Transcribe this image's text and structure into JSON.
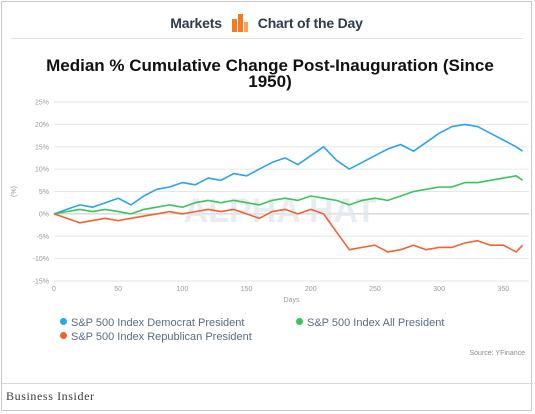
{
  "header": {
    "left_label": "Markets",
    "right_label": "Chart of the Day",
    "icon_name": "bar-chart-icon"
  },
  "watermark": "ALPHA HAT",
  "footer": {
    "source": "Source: YFinance",
    "brand": "Business Insider"
  },
  "colors": {
    "democrat": "#2aa4ea",
    "all": "#3cc45a",
    "republican": "#f2622d",
    "icon_orange": "#f47b20"
  },
  "chart_data": {
    "type": "line",
    "title": "Median % Cumulative Change Post-Inauguration (Since 1950)",
    "title_lines": [
      "Median % Cumulative Change Post-Inauguration (Since",
      "1950)"
    ],
    "xlabel": "Days",
    "ylabel": "(%)",
    "xlim": [
      0,
      370
    ],
    "ylim": [
      -15,
      25
    ],
    "x_ticks": [
      0,
      50,
      100,
      150,
      200,
      250,
      300,
      350
    ],
    "y_ticks": [
      25,
      20,
      15,
      10,
      5,
      0,
      -5,
      -10,
      -15
    ],
    "y_tick_labels": [
      "25%",
      "20%",
      "15%",
      "10%",
      "5%",
      "0%",
      "-5%",
      "-10%",
      "-15%"
    ],
    "grid": true,
    "legend_position": "bottom",
    "series": [
      {
        "name": "S&P 500 Index Democrat President",
        "color": "#2aa4ea",
        "x": [
          0,
          10,
          20,
          30,
          40,
          50,
          60,
          70,
          80,
          90,
          100,
          110,
          120,
          130,
          140,
          150,
          160,
          170,
          180,
          190,
          200,
          210,
          220,
          230,
          240,
          250,
          260,
          270,
          280,
          290,
          300,
          310,
          320,
          330,
          340,
          350,
          360,
          365
        ],
        "y": [
          0,
          1.0,
          2.0,
          1.5,
          2.5,
          3.5,
          2.0,
          4.0,
          5.5,
          6.0,
          7.0,
          6.5,
          8.0,
          7.5,
          9.0,
          8.5,
          10.0,
          11.5,
          12.5,
          11.0,
          13.0,
          15.0,
          12.0,
          10.0,
          11.5,
          13.0,
          14.5,
          15.5,
          14.0,
          16.0,
          18.0,
          19.5,
          20.0,
          19.5,
          18.0,
          16.5,
          15.0,
          14.0
        ]
      },
      {
        "name": "S&P 500 Index All President",
        "color": "#3cc45a",
        "x": [
          0,
          10,
          20,
          30,
          40,
          50,
          60,
          70,
          80,
          90,
          100,
          110,
          120,
          130,
          140,
          150,
          160,
          170,
          180,
          190,
          200,
          210,
          220,
          230,
          240,
          250,
          260,
          270,
          280,
          290,
          300,
          310,
          320,
          330,
          340,
          350,
          360,
          365
        ],
        "y": [
          0,
          0.5,
          1.0,
          0.5,
          1.0,
          0.5,
          0.0,
          1.0,
          1.5,
          2.0,
          1.5,
          2.5,
          3.0,
          2.5,
          3.0,
          2.5,
          2.0,
          3.0,
          3.5,
          3.0,
          4.0,
          3.5,
          3.0,
          2.0,
          3.0,
          3.5,
          3.0,
          4.0,
          5.0,
          5.5,
          6.0,
          6.0,
          7.0,
          7.0,
          7.5,
          8.0,
          8.5,
          7.5
        ]
      },
      {
        "name": "S&P 500 Index Republican President",
        "color": "#f2622d",
        "x": [
          0,
          10,
          20,
          30,
          40,
          50,
          60,
          70,
          80,
          90,
          100,
          110,
          120,
          130,
          140,
          150,
          160,
          170,
          180,
          190,
          200,
          210,
          220,
          230,
          240,
          250,
          260,
          270,
          280,
          290,
          300,
          310,
          320,
          330,
          340,
          350,
          360,
          365
        ],
        "y": [
          0,
          -1.0,
          -2.0,
          -1.5,
          -1.0,
          -1.5,
          -1.0,
          -0.5,
          0.0,
          0.5,
          0.0,
          0.5,
          1.0,
          0.5,
          1.0,
          0.0,
          -1.0,
          0.5,
          1.0,
          0.0,
          1.0,
          0.0,
          -4.0,
          -8.0,
          -7.5,
          -7.0,
          -8.5,
          -8.0,
          -7.0,
          -8.0,
          -7.5,
          -7.5,
          -6.5,
          -6.0,
          -7.0,
          -7.0,
          -8.5,
          -7.0
        ]
      }
    ]
  }
}
